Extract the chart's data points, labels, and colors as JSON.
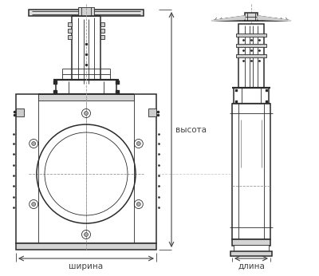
{
  "bg_color": "#ffffff",
  "line_color": "#2a2a2a",
  "dim_color": "#444444",
  "label_vysota": "высота",
  "label_shirina": "ширина",
  "label_dlina": "длина",
  "label_fontsize": 7.5,
  "fig_width": 4.0,
  "fig_height": 3.46
}
